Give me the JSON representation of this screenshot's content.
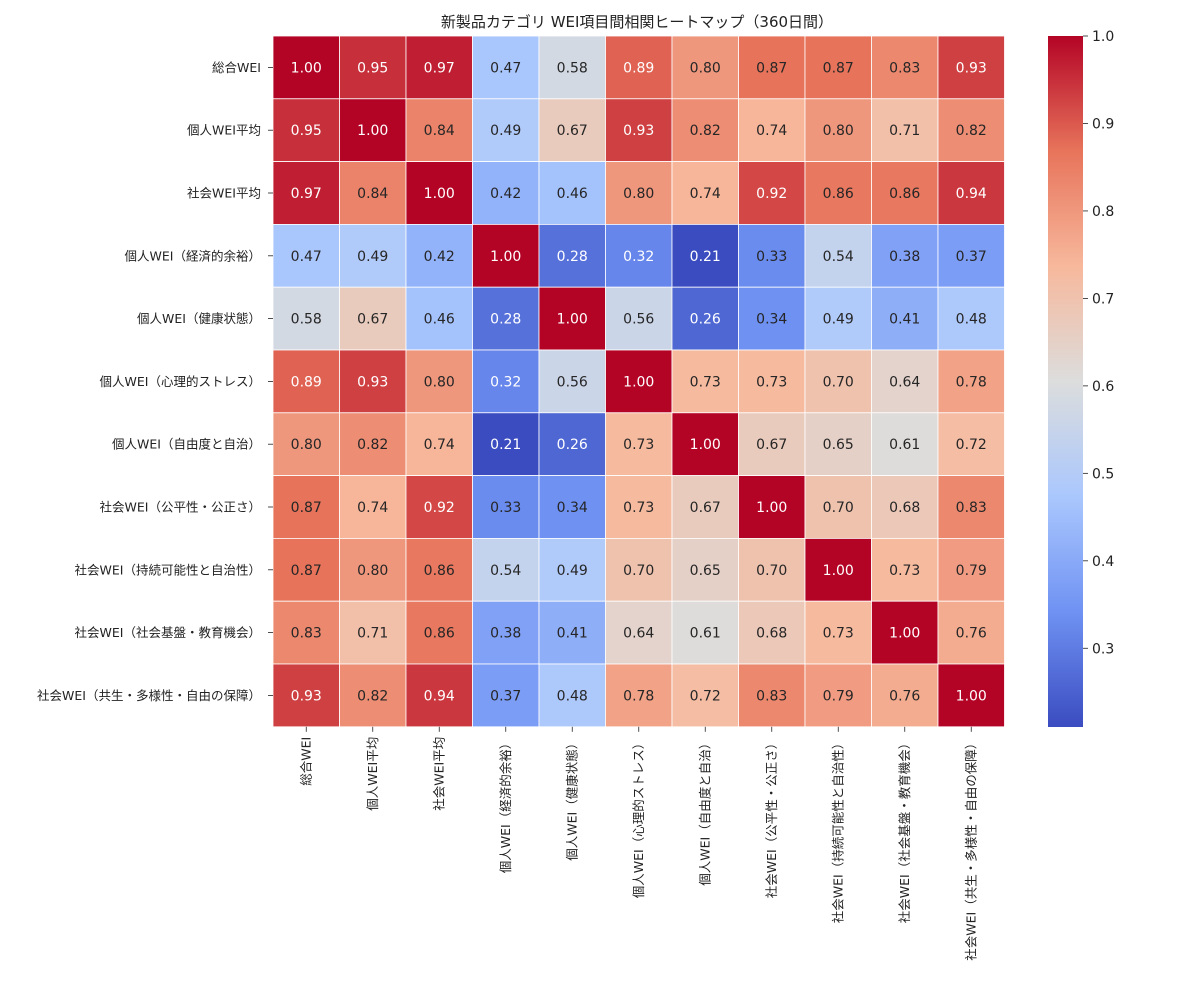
{
  "chart_data": {
    "type": "heatmap",
    "title": "新製品カテゴリ WEI項目間相関ヒートマップ（360日間）",
    "xlabel": "",
    "ylabel": "",
    "labels": [
      "総合WEI",
      "個人WEI平均",
      "社会WEI平均",
      "個人WEI（経済的余裕）",
      "個人WEI（健康状態）",
      "個人WEI（心理的ストレス）",
      "個人WEI（自由度と自治）",
      "社会WEI（公平性・公正さ）",
      "社会WEI（持続可能性と自治性）",
      "社会WEI（社会基盤・教育機会）",
      "社会WEI（共生・多様性・自由の保障）"
    ],
    "matrix": [
      [
        1.0,
        0.95,
        0.97,
        0.47,
        0.58,
        0.89,
        0.8,
        0.87,
        0.87,
        0.83,
        0.93
      ],
      [
        0.95,
        1.0,
        0.84,
        0.49,
        0.67,
        0.93,
        0.82,
        0.74,
        0.8,
        0.71,
        0.82
      ],
      [
        0.97,
        0.84,
        1.0,
        0.42,
        0.46,
        0.8,
        0.74,
        0.92,
        0.86,
        0.86,
        0.94
      ],
      [
        0.47,
        0.49,
        0.42,
        1.0,
        0.28,
        0.32,
        0.21,
        0.33,
        0.54,
        0.38,
        0.37
      ],
      [
        0.58,
        0.67,
        0.46,
        0.28,
        1.0,
        0.56,
        0.26,
        0.34,
        0.49,
        0.41,
        0.48
      ],
      [
        0.89,
        0.93,
        0.8,
        0.32,
        0.56,
        1.0,
        0.73,
        0.73,
        0.7,
        0.64,
        0.78
      ],
      [
        0.8,
        0.82,
        0.74,
        0.21,
        0.26,
        0.73,
        1.0,
        0.67,
        0.65,
        0.61,
        0.72
      ],
      [
        0.87,
        0.74,
        0.92,
        0.33,
        0.34,
        0.73,
        0.67,
        1.0,
        0.7,
        0.68,
        0.83
      ],
      [
        0.87,
        0.8,
        0.86,
        0.54,
        0.49,
        0.7,
        0.65,
        0.7,
        1.0,
        0.73,
        0.79
      ],
      [
        0.83,
        0.71,
        0.86,
        0.38,
        0.41,
        0.64,
        0.61,
        0.68,
        0.73,
        1.0,
        0.76
      ],
      [
        0.93,
        0.82,
        0.94,
        0.37,
        0.48,
        0.78,
        0.72,
        0.83,
        0.79,
        0.76,
        1.0
      ]
    ],
    "value_format": "0.00",
    "color_scale": {
      "colormap": "coolwarm",
      "vmin": 0.21,
      "vmax": 1.0,
      "ticks": [
        0.3,
        0.4,
        0.5,
        0.6,
        0.7,
        0.8,
        0.9,
        1.0
      ],
      "tick_labels": [
        "0.3",
        "0.4",
        "0.5",
        "0.6",
        "0.7",
        "0.8",
        "0.9",
        "1.0"
      ],
      "stops": [
        "#3b4cc0",
        "#6f92f3",
        "#aac7fd",
        "#dcdddd",
        "#f7b89c",
        "#e7745b",
        "#b40426"
      ]
    },
    "colorbar_position": "right",
    "grid_lines": true
  }
}
